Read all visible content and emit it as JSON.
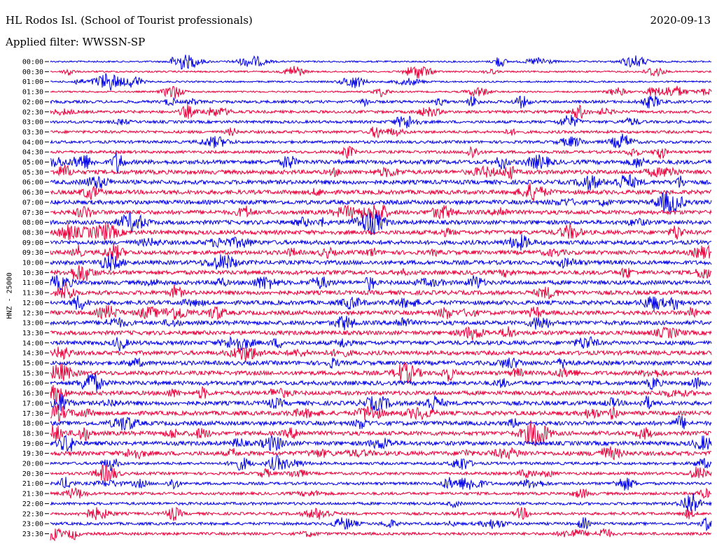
{
  "header": {
    "station": "HL Rodos Isl. (School of Tourist professionals)",
    "date": "2020-09-13",
    "filter": "Applied filter: WWSSN-SP"
  },
  "chart_data": {
    "type": "line",
    "title": "HL Rodos Isl. (School of Tourist professionals)",
    "ylabel": "HNZ - 25000",
    "rows": [
      "00:00",
      "00:30",
      "01:00",
      "01:30",
      "02:00",
      "02:30",
      "03:00",
      "03:30",
      "04:00",
      "04:30",
      "05:00",
      "05:30",
      "06:00",
      "06:30",
      "07:00",
      "07:30",
      "08:00",
      "08:30",
      "09:00",
      "09:30",
      "10:00",
      "10:30",
      "11:00",
      "11:30",
      "12:00",
      "12:30",
      "13:00",
      "13:30",
      "14:00",
      "14:30",
      "15:00",
      "15:30",
      "16:00",
      "16:30",
      "17:00",
      "17:30",
      "18:00",
      "18:30",
      "19:00",
      "19:30",
      "20:00",
      "20:30",
      "21:00",
      "21:30",
      "22:00",
      "22:30",
      "23:00",
      "23:30"
    ],
    "colors": [
      "#0000e6",
      "#e8003a"
    ],
    "grid": false
  }
}
